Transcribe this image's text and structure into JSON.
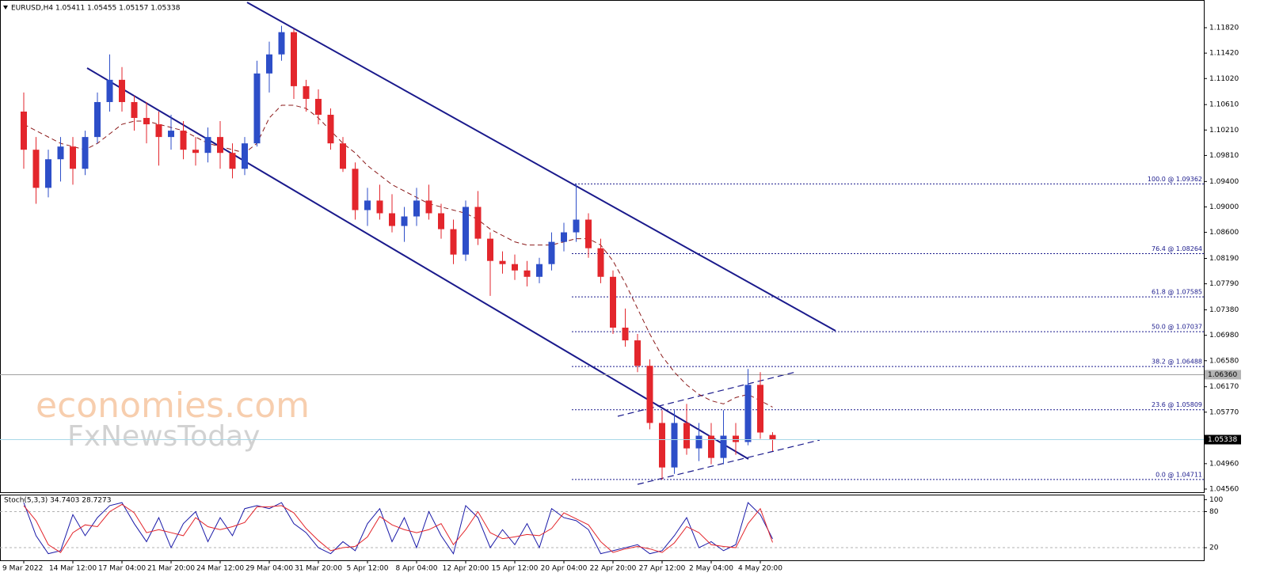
{
  "chart_data": {
    "type": "candlestick",
    "title": "EURUSD,H4  1.05411 1.05455 1.05157 1.05338",
    "categories": [
      "9 Mar 2022",
      null,
      null,
      null,
      "14 Mar 12:00",
      null,
      null,
      null,
      "17 Mar 04:00",
      null,
      null,
      null,
      "21 Mar 20:00",
      null,
      null,
      null,
      "24 Mar 12:00",
      null,
      null,
      null,
      "29 Mar 04:00",
      null,
      null,
      null,
      "31 Mar 20:00",
      null,
      null,
      null,
      "5 Apr 12:00",
      null,
      null,
      null,
      "8 Apr 04:00",
      null,
      null,
      null,
      "12 Apr 20:00",
      null,
      null,
      null,
      "15 Apr 12:00",
      null,
      null,
      null,
      "20 Apr 04:00",
      null,
      null,
      null,
      "22 Apr 20:00",
      null,
      null,
      null,
      "27 Apr 12:00",
      null,
      null,
      null,
      "2 May 04:00",
      null,
      null,
      null,
      "4 May 20:00",
      null
    ],
    "open": [
      1.105,
      1.099,
      1.093,
      1.0975,
      1.0995,
      1.096,
      1.101,
      1.1065,
      1.11,
      1.1065,
      1.104,
      1.103,
      1.101,
      1.102,
      1.099,
      1.0985,
      1.101,
      1.0985,
      1.096,
      1.1,
      1.111,
      1.114,
      1.1175,
      1.109,
      1.107,
      1.1045,
      1.1,
      1.096,
      1.0895,
      1.091,
      1.089,
      1.087,
      1.0885,
      1.091,
      1.089,
      1.0865,
      1.0825,
      1.09,
      1.085,
      1.0815,
      1.081,
      1.08,
      1.079,
      1.081,
      1.0845,
      1.086,
      1.088,
      1.0835,
      1.079,
      1.071,
      1.069,
      1.065,
      1.056,
      1.049,
      1.056,
      1.052,
      1.054,
      1.0505,
      1.054,
      1.053,
      1.062,
      1.05411
    ],
    "high": [
      1.108,
      1.101,
      1.099,
      1.101,
      1.101,
      1.102,
      1.108,
      1.114,
      1.112,
      1.1075,
      1.1065,
      1.105,
      1.1045,
      1.1035,
      1.101,
      1.1025,
      1.1035,
      1.1,
      1.101,
      1.113,
      1.116,
      1.1185,
      1.118,
      1.11,
      1.1085,
      1.1055,
      1.101,
      1.097,
      1.093,
      1.0935,
      1.092,
      1.09,
      1.093,
      1.0935,
      1.0905,
      1.088,
      1.091,
      1.0925,
      1.086,
      1.083,
      1.0825,
      1.0815,
      1.082,
      1.086,
      1.0875,
      1.0936,
      1.089,
      1.085,
      1.08,
      1.074,
      1.07,
      1.066,
      1.058,
      1.058,
      1.059,
      1.056,
      1.056,
      1.058,
      1.056,
      1.0645,
      1.064,
      1.05455
    ],
    "low": [
      1.096,
      1.0905,
      1.0915,
      1.094,
      1.0935,
      1.095,
      1.1,
      1.105,
      1.105,
      1.102,
      1.1,
      1.0965,
      1.099,
      1.0975,
      1.0965,
      1.097,
      1.096,
      1.0945,
      1.095,
      1.0995,
      1.108,
      1.113,
      1.107,
      1.105,
      1.103,
      1.099,
      1.0955,
      1.088,
      1.087,
      1.088,
      1.086,
      1.0845,
      1.087,
      1.088,
      1.085,
      1.081,
      1.0815,
      1.084,
      1.076,
      1.0795,
      1.0785,
      1.0775,
      1.078,
      1.08,
      1.083,
      1.0845,
      1.082,
      1.078,
      1.07,
      1.068,
      1.064,
      1.055,
      1.0471,
      1.048,
      1.051,
      1.05,
      1.0495,
      1.0495,
      1.051,
      1.0525,
      1.0535,
      1.05157
    ],
    "close": [
      1.099,
      1.093,
      1.0975,
      1.0995,
      1.096,
      1.101,
      1.1065,
      1.11,
      1.1065,
      1.104,
      1.103,
      1.101,
      1.102,
      1.099,
      1.0985,
      1.101,
      1.0985,
      1.096,
      1.1,
      1.111,
      1.114,
      1.1175,
      1.109,
      1.107,
      1.1045,
      1.1,
      1.096,
      1.0895,
      1.091,
      1.089,
      1.087,
      1.0885,
      1.091,
      1.089,
      1.0865,
      1.0825,
      1.09,
      1.085,
      1.0815,
      1.081,
      1.08,
      1.079,
      1.081,
      1.0845,
      1.086,
      1.088,
      1.0835,
      1.079,
      1.071,
      1.069,
      1.065,
      1.056,
      1.049,
      1.056,
      1.052,
      1.054,
      1.0505,
      1.054,
      1.053,
      1.062,
      1.0545,
      1.05338
    ],
    "colors": {
      "up": "#2d4ec8",
      "down": "#e3262c"
    },
    "ylim": [
      1.0451,
      1.12256
    ],
    "yticks": [
      {
        "value": 1.1182,
        "label": "1.11820"
      },
      {
        "value": 1.1142,
        "label": "1.11420"
      },
      {
        "value": 1.1102,
        "label": "1.11020"
      },
      {
        "value": 1.1061,
        "label": "1.10610"
      },
      {
        "value": 1.1021,
        "label": "1.10210"
      },
      {
        "value": 1.0981,
        "label": "1.09810"
      },
      {
        "value": 1.094,
        "label": "1.09400"
      },
      {
        "value": 1.09,
        "label": "1.09000"
      },
      {
        "value": 1.086,
        "label": "1.08600"
      },
      {
        "value": 1.0819,
        "label": "1.08190"
      },
      {
        "value": 1.0779,
        "label": "1.07790"
      },
      {
        "value": 1.0738,
        "label": "1.07380"
      },
      {
        "value": 1.0698,
        "label": "1.06980"
      },
      {
        "value": 1.0658,
        "label": "1.06580"
      },
      {
        "value": 1.0617,
        "label": "1.06170"
      },
      {
        "value": 1.0577,
        "label": "1.05770"
      },
      {
        "value": 1.0496,
        "label": "1.04960"
      },
      {
        "value": 1.0456,
        "label": "1.04560"
      }
    ],
    "ma": {
      "color": "#8b1a1a",
      "values": [
        1.103,
        1.102,
        1.101,
        1.1,
        1.0995,
        1.099,
        1.1,
        1.1015,
        1.103,
        1.1035,
        1.1035,
        1.103,
        1.1025,
        1.102,
        1.101,
        1.1,
        1.0995,
        1.099,
        1.0985,
        1.1,
        1.104,
        1.106,
        1.106,
        1.1055,
        1.104,
        1.102,
        1.1,
        1.0985,
        1.0965,
        1.095,
        1.0935,
        1.0925,
        1.0915,
        1.0905,
        1.09,
        1.0895,
        1.089,
        1.088,
        1.0865,
        1.0855,
        1.0845,
        1.084,
        1.084,
        1.084,
        1.0845,
        1.085,
        1.085,
        1.084,
        1.0815,
        1.078,
        1.074,
        1.07,
        1.0665,
        1.064,
        1.062,
        1.0605,
        1.0595,
        1.059,
        1.06,
        1.0605,
        1.0595,
        1.0585
      ]
    },
    "levels": [
      {
        "value": 1.09362,
        "label": "100.0 @ 1.09362"
      },
      {
        "value": 1.08264,
        "label": "76.4 @ 1.08264"
      },
      {
        "value": 1.07585,
        "label": "61.8 @ 1.07585"
      },
      {
        "value": 1.07037,
        "label": "50.0 @ 1.07037"
      },
      {
        "value": 1.06488,
        "label": "38.2 @ 1.06488"
      },
      {
        "value": 1.05809,
        "label": "23.6 @ 1.05809"
      },
      {
        "value": 1.04711,
        "label": "0.0 @ 1.04711"
      }
    ],
    "level_color": "#1a1a8c",
    "marker_price": {
      "value": 1.0636,
      "label": "1.06360"
    },
    "current_price": {
      "value": 1.05338,
      "label": "1.05338"
    },
    "watermark": [
      "economies.com",
      "FxNewsToday"
    ],
    "indicator": {
      "title": "Stoch(5,3,3) 34.7403 28.7273",
      "ylim": [
        -1,
        107
      ],
      "yticks": [
        100,
        80,
        20
      ],
      "series": [
        {
          "color": "#1a1aa8",
          "values": [
            95,
            40,
            10,
            15,
            75,
            40,
            70,
            90,
            95,
            60,
            30,
            70,
            20,
            60,
            80,
            30,
            70,
            40,
            85,
            90,
            85,
            95,
            60,
            45,
            20,
            10,
            30,
            15,
            60,
            85,
            30,
            70,
            20,
            80,
            40,
            10,
            90,
            70,
            20,
            50,
            25,
            60,
            20,
            85,
            70,
            65,
            50,
            10,
            15,
            20,
            25,
            10,
            15,
            40,
            70,
            20,
            30,
            15,
            25,
            95,
            75,
            34.7403
          ]
        },
        {
          "color": "#e3262c",
          "values": [
            90,
            65,
            25,
            12,
            45,
            58,
            55,
            80,
            92,
            78,
            45,
            50,
            45,
            40,
            70,
            55,
            50,
            55,
            62,
            88,
            88,
            90,
            78,
            52,
            32,
            15,
            20,
            22,
            38,
            72,
            58,
            50,
            45,
            50,
            60,
            25,
            50,
            80,
            45,
            35,
            38,
            42,
            40,
            52,
            78,
            68,
            58,
            30,
            12,
            18,
            22,
            18,
            12,
            28,
            55,
            45,
            25,
            22,
            20,
            60,
            85,
            28.7273
          ]
        }
      ]
    }
  }
}
